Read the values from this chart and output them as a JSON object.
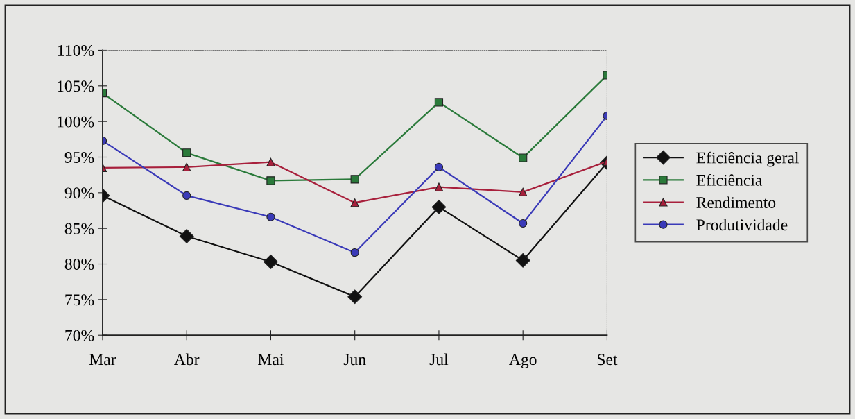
{
  "chart_data": {
    "type": "line",
    "categories": [
      "Mar",
      "Abr",
      "Mai",
      "Jun",
      "Jul",
      "Ago",
      "Set"
    ],
    "series": [
      {
        "name": "Eficiência geral",
        "color": "#111111",
        "marker": "diamond",
        "values": [
          89.6,
          83.9,
          80.3,
          75.4,
          88.0,
          80.5,
          94.2
        ]
      },
      {
        "name": "Eficiência",
        "color": "#2a7a3a",
        "marker": "square",
        "values": [
          104.0,
          95.6,
          91.7,
          91.9,
          102.7,
          94.9,
          106.5
        ]
      },
      {
        "name": "Rendimento",
        "color": "#a8203c",
        "marker": "triangle",
        "values": [
          93.5,
          93.6,
          94.3,
          88.6,
          90.8,
          90.1,
          94.4
        ]
      },
      {
        "name": "Produtividade",
        "color": "#3a3ab8",
        "marker": "circle",
        "values": [
          97.3,
          89.6,
          86.6,
          81.6,
          93.6,
          85.7,
          100.8
        ]
      }
    ],
    "ylim": [
      70,
      110
    ],
    "yticks": [
      {
        "value": 70,
        "label": "70%"
      },
      {
        "value": 75,
        "label": "75%"
      },
      {
        "value": 80,
        "label": "80%"
      },
      {
        "value": 85,
        "label": "85%"
      },
      {
        "value": 90,
        "label": "90%"
      },
      {
        "value": 95,
        "label": "95%"
      },
      {
        "value": 100,
        "label": "100%"
      },
      {
        "value": 105,
        "label": "105%"
      },
      {
        "value": 110,
        "label": "110%"
      }
    ],
    "grid": false,
    "legend": "right",
    "line_style": "solid"
  }
}
